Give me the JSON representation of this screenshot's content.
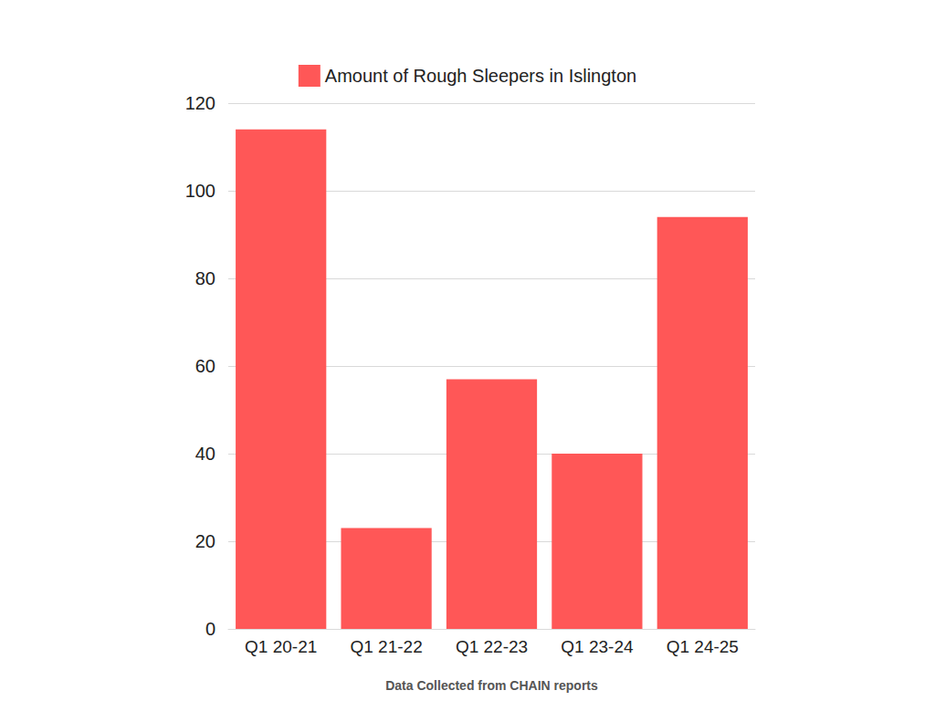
{
  "chart_data": {
    "type": "bar",
    "categories": [
      "Q1 20-21",
      "Q1 21-22",
      "Q1 22-23",
      "Q1 23-24",
      "Q1 24-25"
    ],
    "series": [
      {
        "name": "Amount of Rough Sleepers in Islington",
        "color": "#ff5757",
        "values": [
          114,
          23,
          57,
          40,
          94
        ]
      }
    ],
    "xlabel": "Data Collected from CHAIN reports",
    "ylim": [
      0,
      120
    ],
    "yticks": [
      0,
      20,
      40,
      60,
      80,
      100,
      120
    ],
    "grid": true,
    "legend": "top"
  }
}
